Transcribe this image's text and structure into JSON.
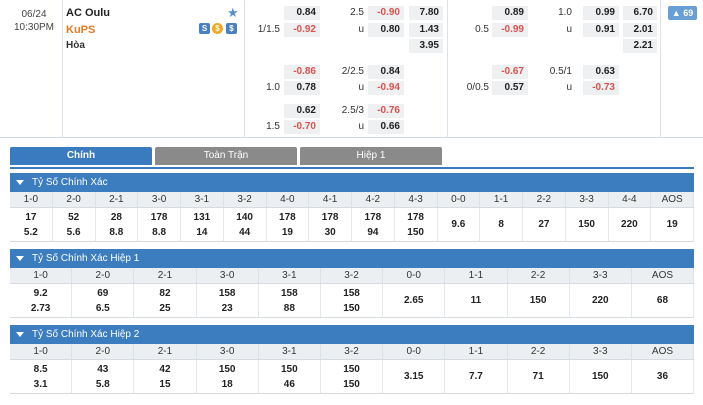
{
  "match": {
    "date": "06/24",
    "time": "10:30PM",
    "home": "AC Oulu",
    "away": "KuPS",
    "draw": "Hòa",
    "more_count": "69"
  },
  "odds_left": {
    "rows": [
      {
        "ah_home": "0.84",
        "hc": "2.5",
        "ou_over": "-0.90",
        "x12": "7.80"
      },
      {
        "ah_hc": "1/1.5",
        "ah_home": "-0.92",
        "hc": "u",
        "ou_over": "0.80",
        "x12": "1.43"
      },
      {
        "x12": "3.95"
      },
      {
        "ah_home": "-0.86",
        "hc": "2/2.5",
        "ou_over": "0.84"
      },
      {
        "ah_hc": "1.0",
        "ah_home": "0.78",
        "hc": "u",
        "ou_over": "-0.94"
      },
      {
        "ah_home": "0.62",
        "hc": "2.5/3",
        "ou_over": "-0.76"
      },
      {
        "ah_hc": "1.5",
        "ah_home": "-0.70",
        "hc": "u",
        "ou_over": "0.66"
      }
    ]
  },
  "odds_right": {
    "rows": [
      {
        "ah_home": "0.89",
        "hc": "1.0",
        "ou_over": "0.99",
        "x12": "6.70"
      },
      {
        "ah_hc": "0.5",
        "ah_home": "-0.99",
        "hc": "u",
        "ou_over": "0.91",
        "x12": "2.01"
      },
      {
        "x12": "2.21"
      },
      {
        "ah_home": "-0.67",
        "hc": "0.5/1",
        "ou_over": "0.63"
      },
      {
        "ah_hc": "0/0.5",
        "ah_home": "0.57",
        "hc": "u",
        "ou_over": "-0.73"
      }
    ]
  },
  "tabs": [
    "Chính",
    "Toàn Trận",
    "Hiệp 1"
  ],
  "sections": [
    {
      "title": "Tỷ Số Chính Xác",
      "cols": [
        "1-0",
        "2-0",
        "2-1",
        "3-0",
        "3-1",
        "3-2",
        "4-0",
        "4-1",
        "4-2",
        "4-3",
        "0-0",
        "1-1",
        "2-2",
        "3-3",
        "4-4",
        "AOS"
      ],
      "vals": [
        [
          "17",
          "5.2"
        ],
        [
          "52",
          "5.6"
        ],
        [
          "28",
          "8.8"
        ],
        [
          "178",
          "8.8"
        ],
        [
          "131",
          "14"
        ],
        [
          "140",
          "44"
        ],
        [
          "178",
          "19"
        ],
        [
          "178",
          "30"
        ],
        [
          "178",
          "94"
        ],
        [
          "178",
          "150"
        ],
        [
          "9.6"
        ],
        [
          "8"
        ],
        [
          "27"
        ],
        [
          "150"
        ],
        [
          "220"
        ],
        [
          "19"
        ]
      ]
    },
    {
      "title": "Tỷ Số Chính Xác Hiệp 1",
      "cols": [
        "1-0",
        "2-0",
        "2-1",
        "3-0",
        "3-1",
        "3-2",
        "0-0",
        "1-1",
        "2-2",
        "3-3",
        "AOS"
      ],
      "vals": [
        [
          "9.2",
          "2.73"
        ],
        [
          "69",
          "6.5"
        ],
        [
          "82",
          "25"
        ],
        [
          "158",
          "23"
        ],
        [
          "158",
          "88"
        ],
        [
          "158",
          "150"
        ],
        [
          "2.65"
        ],
        [
          "11"
        ],
        [
          "150"
        ],
        [
          "220"
        ],
        [
          "68"
        ]
      ]
    },
    {
      "title": "Tỷ Số Chính Xác Hiệp 2",
      "cols": [
        "1-0",
        "2-0",
        "2-1",
        "3-0",
        "3-1",
        "3-2",
        "0-0",
        "1-1",
        "2-2",
        "3-3",
        "AOS"
      ],
      "vals": [
        [
          "8.5",
          "3.1"
        ],
        [
          "43",
          "5.8"
        ],
        [
          "42",
          "15"
        ],
        [
          "150",
          "18"
        ],
        [
          "150",
          "46"
        ],
        [
          "150",
          "150"
        ],
        [
          "3.15"
        ],
        [
          "7.7"
        ],
        [
          "71"
        ],
        [
          "150"
        ],
        [
          "36"
        ]
      ]
    }
  ]
}
